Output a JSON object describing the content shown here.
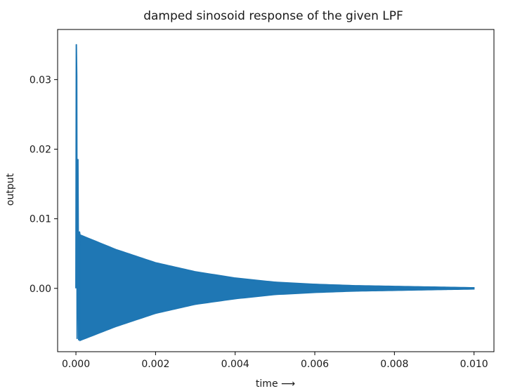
{
  "chart_data": {
    "type": "line",
    "title": "damped sinosoid response of the given LPF",
    "xlabel": "time ⟶",
    "ylabel": "output",
    "xlim": [
      -0.00046,
      0.0105
    ],
    "ylim": [
      -0.0091,
      0.0372
    ],
    "xticks": [
      0.0,
      0.002,
      0.004,
      0.006,
      0.008,
      0.01
    ],
    "xtick_labels": [
      "0.000",
      "0.002",
      "0.004",
      "0.006",
      "0.008",
      "0.010"
    ],
    "yticks": [
      0.0,
      0.01,
      0.02,
      0.03
    ],
    "ytick_labels": [
      "0.00",
      "0.01",
      "0.02",
      "0.03"
    ],
    "grid": false,
    "color": "#1f77b4",
    "series": [
      {
        "x_start": 0.0,
        "x_end": 0.01,
        "initial_spike_peak": 0.035,
        "upper_envelope": {
          "x": [
            0.0001,
            0.001,
            0.002,
            0.003,
            0.004,
            0.005,
            0.006,
            0.007,
            0.008,
            0.009,
            0.01
          ],
          "y": [
            0.0077,
            0.0056,
            0.0037,
            0.0024,
            0.0015,
            0.0009,
            0.0006,
            0.0004,
            0.0003,
            0.0002,
            0.0001
          ]
        },
        "lower_envelope": {
          "x": [
            0.0001,
            0.001,
            0.002,
            0.003,
            0.004,
            0.005,
            0.006,
            0.007,
            0.008,
            0.009,
            0.01
          ],
          "y": [
            -0.0075,
            -0.0055,
            -0.0036,
            -0.0023,
            -0.0015,
            -0.0009,
            -0.0006,
            -0.0004,
            -0.0003,
            -0.0002,
            -0.0001
          ]
        }
      }
    ]
  }
}
